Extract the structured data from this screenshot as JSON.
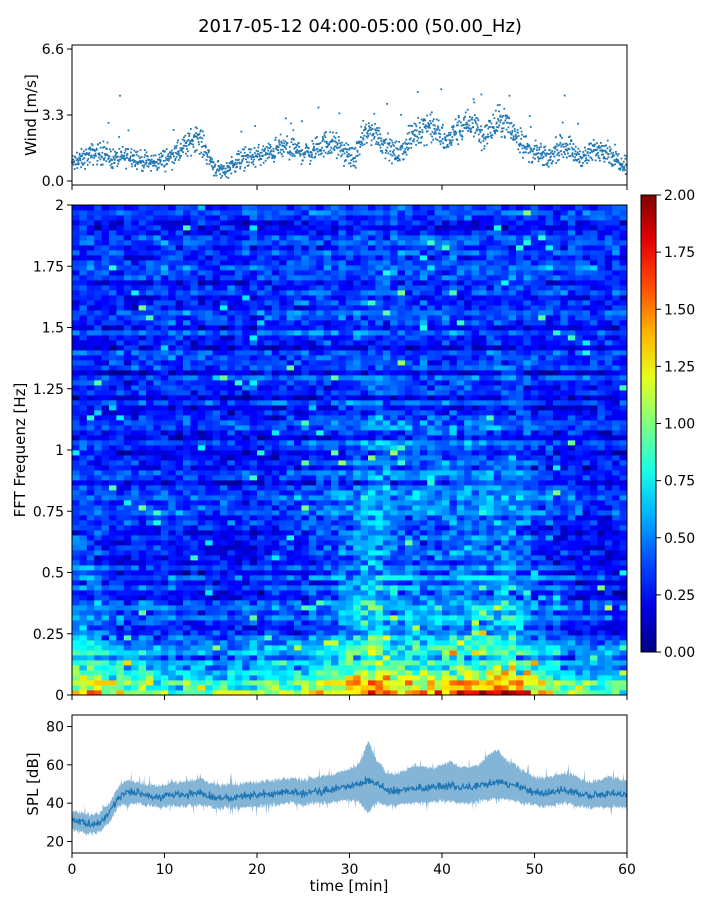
{
  "figure": {
    "title": "2017-05-12 04:00-05:00 (50.00_Hz)"
  },
  "chart_data": [
    {
      "type": "scatter",
      "panel": "wind",
      "ylabel": "Wind [m/s]",
      "xlim": [
        0,
        60
      ],
      "ylim": [
        -0.2,
        6.8
      ],
      "yticks": [
        0.0,
        3.3,
        6.6
      ],
      "ytick_labels": [
        "0.0",
        "3.3",
        "6.6"
      ],
      "color": "#1f77b4",
      "x": [
        0.5,
        1.5,
        2.5,
        3.5,
        4.5,
        5.5,
        6.5,
        7.5,
        8.5,
        9.5,
        10.5,
        11.5,
        12.5,
        13.5,
        14.5,
        15.5,
        16.5,
        17.5,
        18.5,
        19.5,
        20.5,
        21.5,
        22.5,
        23.5,
        24.5,
        25.5,
        26.5,
        27.5,
        28.5,
        29.5,
        30.5,
        31.5,
        32.5,
        33.5,
        34.5,
        35.5,
        36.5,
        37.5,
        38.5,
        39.5,
        40.5,
        41.5,
        42.5,
        43.5,
        44.5,
        45.5,
        46.5,
        47.5,
        48.5,
        49.5,
        50.5,
        51.5,
        52.5,
        53.5,
        54.5,
        55.5,
        56.5,
        57.5,
        58.5,
        59.5
      ],
      "y": [
        0.9,
        1.2,
        1.4,
        1.3,
        1.1,
        1.2,
        1.3,
        1.0,
        0.9,
        1.0,
        1.2,
        1.4,
        1.8,
        2.3,
        1.5,
        0.6,
        0.5,
        0.9,
        1.1,
        1.2,
        1.3,
        1.4,
        1.7,
        1.6,
        1.5,
        1.4,
        1.6,
        1.9,
        1.8,
        1.4,
        1.1,
        2.2,
        2.6,
        2.0,
        1.5,
        1.4,
        2.0,
        2.6,
        2.8,
        2.4,
        1.9,
        2.5,
        2.7,
        2.9,
        2.2,
        2.7,
        3.0,
        2.6,
        2.0,
        1.5,
        1.3,
        1.1,
        1.6,
        1.8,
        1.3,
        1.2,
        1.5,
        1.7,
        1.2,
        0.9
      ]
    },
    {
      "type": "heatmap",
      "panel": "spectrogram",
      "ylabel": "FFT Frequenz [Hz]",
      "xlim": [
        0,
        60
      ],
      "ylim": [
        0,
        2
      ],
      "yticks": [
        0,
        0.25,
        0.5,
        0.75,
        1,
        1.25,
        1.5,
        1.75,
        2
      ],
      "ytick_labels": [
        "0",
        "0.25",
        "0.5",
        "0.75",
        "1",
        "1.25",
        "1.5",
        "1.75",
        "2"
      ],
      "colormap": "jet",
      "clim": [
        0,
        2
      ],
      "colorbar_ticks": [
        0.0,
        0.25,
        0.5,
        0.75,
        1.0,
        1.25,
        1.5,
        1.75,
        2.0
      ],
      "colorbar_labels": [
        "0.00",
        "0.25",
        "0.50",
        "0.75",
        "1.00",
        "1.25",
        "1.50",
        "1.75",
        "2.00"
      ],
      "time_min": [
        0,
        5,
        10,
        15,
        20,
        25,
        30,
        32.5,
        35,
        40,
        45,
        47.5,
        50,
        55,
        60
      ],
      "freq_hz": [
        0.0,
        0.1,
        0.25,
        0.5,
        0.75,
        1.0,
        1.25,
        1.5,
        1.75,
        2.0
      ],
      "values": [
        [
          1.6,
          1.2,
          1.1,
          1.0,
          1.1,
          1.2,
          1.5,
          1.9,
          1.4,
          1.6,
          1.7,
          1.8,
          1.5,
          1.0,
          1.0
        ],
        [
          0.9,
          0.7,
          0.6,
          0.5,
          0.6,
          0.6,
          0.9,
          1.0,
          0.8,
          0.8,
          0.9,
          0.9,
          0.7,
          0.5,
          0.5
        ],
        [
          0.6,
          0.4,
          0.4,
          0.35,
          0.4,
          0.4,
          0.6,
          0.8,
          0.6,
          0.6,
          0.7,
          0.7,
          0.5,
          0.35,
          0.35
        ],
        [
          0.45,
          0.35,
          0.35,
          0.3,
          0.35,
          0.35,
          0.5,
          0.7,
          0.5,
          0.5,
          0.55,
          0.55,
          0.4,
          0.3,
          0.3
        ],
        [
          0.4,
          0.3,
          0.35,
          0.3,
          0.3,
          0.35,
          0.45,
          0.6,
          0.45,
          0.45,
          0.5,
          0.5,
          0.4,
          0.3,
          0.3
        ],
        [
          0.35,
          0.3,
          0.3,
          0.3,
          0.3,
          0.35,
          0.4,
          0.5,
          0.45,
          0.45,
          0.45,
          0.45,
          0.35,
          0.3,
          0.3
        ],
        [
          0.3,
          0.3,
          0.3,
          0.3,
          0.3,
          0.3,
          0.35,
          0.4,
          0.35,
          0.35,
          0.35,
          0.35,
          0.3,
          0.3,
          0.3
        ],
        [
          0.3,
          0.3,
          0.35,
          0.3,
          0.3,
          0.35,
          0.35,
          0.35,
          0.35,
          0.35,
          0.35,
          0.35,
          0.3,
          0.3,
          0.3
        ],
        [
          0.4,
          0.35,
          0.4,
          0.35,
          0.35,
          0.4,
          0.4,
          0.45,
          0.4,
          0.4,
          0.4,
          0.4,
          0.4,
          0.4,
          0.35
        ],
        [
          0.3,
          0.3,
          0.3,
          0.3,
          0.3,
          0.3,
          0.35,
          0.35,
          0.3,
          0.3,
          0.3,
          0.3,
          0.3,
          0.3,
          0.3
        ]
      ]
    },
    {
      "type": "line",
      "panel": "spl",
      "ylabel": "SPL [dB]",
      "xlabel": "time [min]",
      "xlim": [
        0,
        60
      ],
      "ylim": [
        14,
        86
      ],
      "xticks": [
        0,
        10,
        20,
        30,
        40,
        50,
        60
      ],
      "xtick_labels": [
        "0",
        "10",
        "20",
        "30",
        "40",
        "50",
        "60"
      ],
      "yticks": [
        20,
        40,
        60,
        80
      ],
      "ytick_labels": [
        "20",
        "40",
        "60",
        "80"
      ],
      "color": "#1f77b4",
      "x": [
        0,
        1,
        2,
        3,
        4,
        5,
        6,
        7,
        8,
        9,
        10,
        11,
        12,
        13,
        14,
        15,
        16,
        17,
        18,
        19,
        20,
        21,
        22,
        23,
        24,
        25,
        26,
        27,
        28,
        29,
        30,
        31,
        32,
        33,
        34,
        35,
        36,
        37,
        38,
        39,
        40,
        41,
        42,
        43,
        44,
        45,
        46,
        47,
        48,
        49,
        50,
        51,
        52,
        53,
        54,
        55,
        56,
        57,
        58,
        59,
        60
      ],
      "y": [
        31,
        30,
        29,
        30,
        35,
        43,
        46,
        45,
        44,
        43,
        44,
        45,
        44,
        45,
        45,
        43,
        42,
        43,
        43,
        44,
        44,
        45,
        45,
        46,
        46,
        45,
        46,
        46,
        47,
        48,
        49,
        50,
        52,
        50,
        47,
        46,
        47,
        48,
        48,
        48,
        49,
        49,
        48,
        48,
        49,
        50,
        51,
        50,
        49,
        47,
        46,
        45,
        46,
        47,
        46,
        45,
        44,
        44,
        45,
        45,
        44
      ],
      "band_low": [
        26,
        25,
        24,
        25,
        30,
        38,
        40,
        40,
        39,
        38,
        38,
        39,
        38,
        39,
        39,
        38,
        37,
        38,
        37,
        38,
        38,
        39,
        39,
        40,
        40,
        39,
        40,
        40,
        40,
        41,
        42,
        41,
        35,
        40,
        39,
        39,
        40,
        40,
        40,
        41,
        41,
        41,
        40,
        40,
        41,
        42,
        42,
        42,
        41,
        40,
        39,
        38,
        39,
        40,
        39,
        38,
        38,
        38,
        38,
        38,
        38
      ],
      "band_high": [
        36,
        35,
        34,
        35,
        40,
        48,
        52,
        51,
        50,
        49,
        50,
        51,
        51,
        52,
        53,
        50,
        49,
        50,
        50,
        51,
        51,
        52,
        52,
        53,
        53,
        52,
        53,
        54,
        55,
        56,
        58,
        60,
        72,
        62,
        56,
        55,
        57,
        60,
        59,
        58,
        60,
        62,
        59,
        59,
        60,
        65,
        68,
        62,
        60,
        56,
        54,
        53,
        54,
        56,
        55,
        53,
        51,
        52,
        54,
        53,
        51
      ]
    }
  ]
}
